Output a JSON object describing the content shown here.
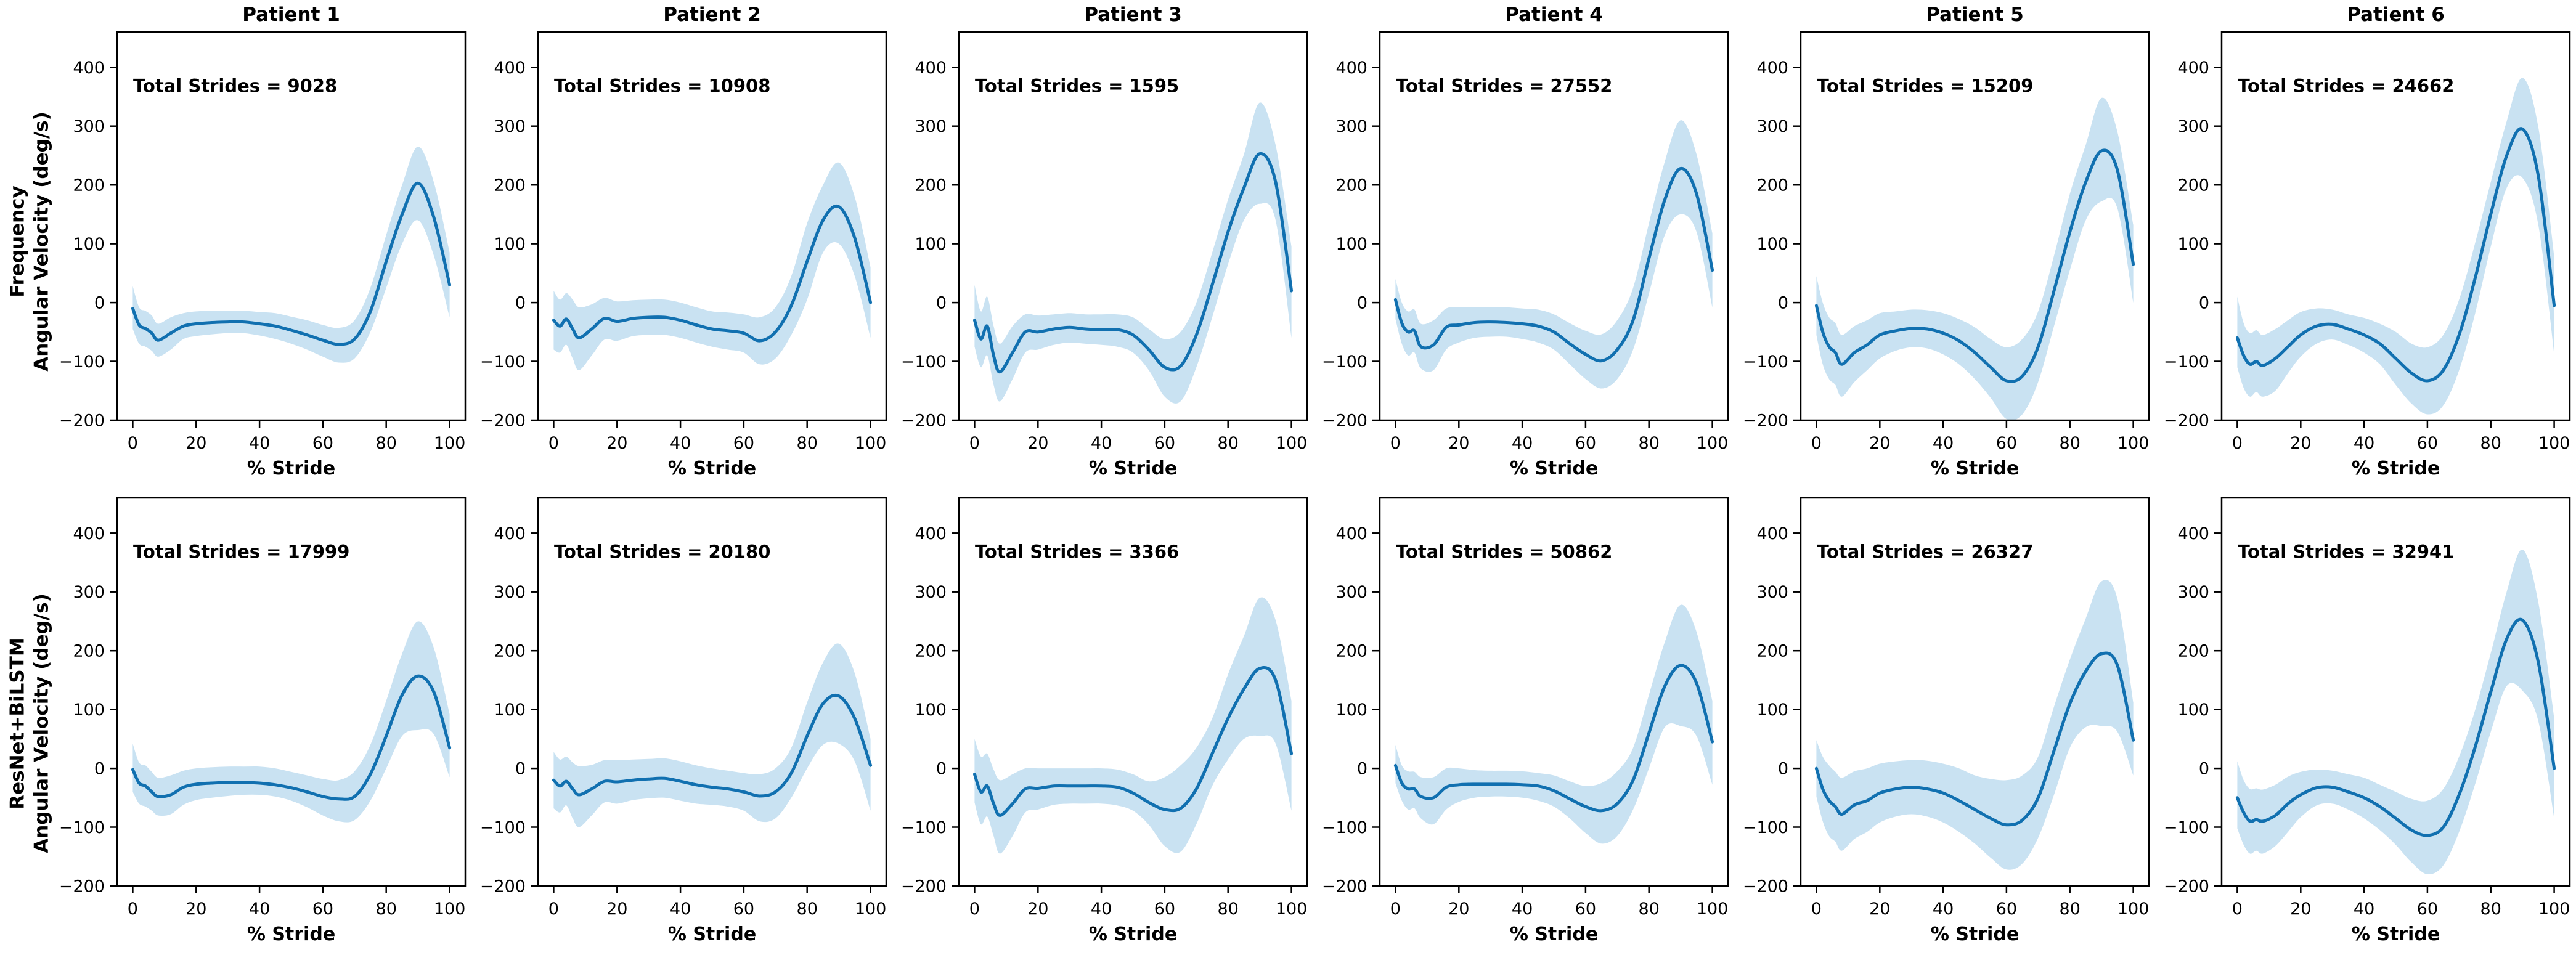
{
  "figure": {
    "xlabel": "% Stride",
    "x_ticks": [
      0,
      20,
      40,
      60,
      80,
      100
    ],
    "y_ticks": [
      400,
      300,
      200,
      100,
      0,
      -100,
      -200
    ],
    "xlim": [
      0,
      100
    ],
    "ylim": [
      -200,
      460
    ],
    "annotation_prefix": "Total Strides = ",
    "row_labels": [
      {
        "line1": "Frequency",
        "line2": "Angular Velocity (deg/s)"
      },
      {
        "line1": "ResNet+BiLSTM",
        "line2": "Angular Velocity (deg/s)"
      }
    ],
    "colors": {
      "line": "#1170b0",
      "band": "#c9e2f2",
      "text": "#000000",
      "spine": "#000000",
      "background": "#ffffff"
    }
  },
  "chart_data": [
    {
      "type": "line",
      "row": "Frequency",
      "col": 1,
      "title": "Patient 1",
      "annotation": "Total Strides = 9028",
      "total_strides": 9028,
      "x": [
        0,
        2,
        4,
        6,
        8,
        12,
        16,
        20,
        25,
        30,
        35,
        40,
        45,
        50,
        55,
        60,
        65,
        70,
        75,
        80,
        85,
        90,
        95,
        100
      ],
      "mean": [
        -10,
        -38,
        -44,
        -52,
        -64,
        -52,
        -40,
        -36,
        -34,
        -33,
        -33,
        -36,
        -40,
        -47,
        -55,
        -64,
        -71,
        -62,
        -15,
        70,
        150,
        203,
        145,
        30
      ],
      "lower": [
        -45,
        -70,
        -75,
        -82,
        -92,
        -80,
        -62,
        -57,
        -54,
        -52,
        -52,
        -56,
        -62,
        -70,
        -80,
        -92,
        -102,
        -95,
        -50,
        25,
        100,
        140,
        80,
        -25
      ],
      "upper": [
        28,
        -8,
        -14,
        -22,
        -36,
        -25,
        -18,
        -15,
        -14,
        -14,
        -14,
        -16,
        -18,
        -24,
        -30,
        -38,
        -43,
        -30,
        25,
        115,
        200,
        265,
        205,
        85
      ]
    },
    {
      "type": "line",
      "row": "Frequency",
      "col": 2,
      "title": "Patient 2",
      "annotation": "Total Strides = 10908",
      "total_strides": 10908,
      "x": [
        0,
        2,
        4,
        6,
        8,
        12,
        16,
        20,
        25,
        30,
        35,
        40,
        45,
        50,
        55,
        60,
        65,
        70,
        75,
        80,
        85,
        90,
        95,
        100
      ],
      "mean": [
        -30,
        -40,
        -28,
        -45,
        -60,
        -45,
        -27,
        -32,
        -27,
        -25,
        -25,
        -30,
        -38,
        -45,
        -48,
        -52,
        -65,
        -50,
        -5,
        70,
        140,
        163,
        110,
        0
      ],
      "lower": [
        -80,
        -85,
        -72,
        -95,
        -115,
        -90,
        -63,
        -65,
        -57,
        -55,
        -55,
        -60,
        -68,
        -75,
        -80,
        -85,
        -105,
        -95,
        -55,
        5,
        85,
        100,
        45,
        -60
      ],
      "upper": [
        20,
        5,
        16,
        5,
        -8,
        -3,
        8,
        2,
        4,
        5,
        5,
        0,
        -8,
        -15,
        -17,
        -20,
        -25,
        -8,
        45,
        135,
        200,
        238,
        180,
        60
      ]
    },
    {
      "type": "line",
      "row": "Frequency",
      "col": 3,
      "title": "Patient 3",
      "annotation": "Total Strides = 1595",
      "total_strides": 1595,
      "x": [
        0,
        2,
        4,
        6,
        8,
        12,
        16,
        20,
        25,
        30,
        35,
        40,
        45,
        50,
        55,
        60,
        65,
        70,
        75,
        80,
        85,
        90,
        95,
        100
      ],
      "mean": [
        -30,
        -62,
        -40,
        -90,
        -118,
        -85,
        -50,
        -50,
        -45,
        -42,
        -45,
        -46,
        -46,
        -55,
        -80,
        -110,
        -108,
        -55,
        30,
        120,
        195,
        253,
        205,
        20
      ],
      "lower": [
        -75,
        -110,
        -90,
        -140,
        -168,
        -130,
        -85,
        -80,
        -72,
        -68,
        -70,
        -72,
        -75,
        -85,
        -115,
        -160,
        -168,
        -110,
        -25,
        65,
        140,
        168,
        140,
        -60
      ],
      "upper": [
        30,
        -15,
        10,
        -40,
        -70,
        -40,
        -20,
        -22,
        -20,
        -18,
        -20,
        -20,
        -20,
        -25,
        -45,
        -62,
        -50,
        0,
        85,
        175,
        252,
        340,
        268,
        95
      ]
    },
    {
      "type": "line",
      "row": "Frequency",
      "col": 4,
      "title": "Patient 4",
      "annotation": "Total Strides = 27552",
      "total_strides": 27552,
      "x": [
        0,
        2,
        4,
        6,
        8,
        12,
        16,
        20,
        25,
        30,
        35,
        40,
        45,
        50,
        55,
        60,
        65,
        70,
        75,
        80,
        85,
        90,
        95,
        100
      ],
      "mean": [
        5,
        -35,
        -50,
        -48,
        -75,
        -72,
        -42,
        -38,
        -34,
        -33,
        -34,
        -36,
        -40,
        -50,
        -70,
        -88,
        -99,
        -80,
        -30,
        75,
        175,
        228,
        185,
        55
      ],
      "lower": [
        -28,
        -70,
        -90,
        -85,
        -112,
        -115,
        -80,
        -68,
        -60,
        -58,
        -58,
        -62,
        -68,
        -80,
        -105,
        -130,
        -146,
        -130,
        -80,
        15,
        115,
        150,
        120,
        -8
      ],
      "upper": [
        40,
        0,
        -15,
        -12,
        -36,
        -30,
        -10,
        -8,
        -8,
        -8,
        -8,
        -10,
        -12,
        -20,
        -35,
        -48,
        -54,
        -30,
        25,
        135,
        240,
        310,
        252,
        118
      ]
    },
    {
      "type": "line",
      "row": "Frequency",
      "col": 5,
      "title": "Patient 5",
      "annotation": "Total Strides = 15209",
      "total_strides": 15209,
      "x": [
        0,
        2,
        4,
        6,
        8,
        12,
        16,
        20,
        25,
        30,
        35,
        40,
        45,
        50,
        55,
        60,
        65,
        70,
        75,
        80,
        85,
        90,
        95,
        100
      ],
      "mean": [
        -5,
        -50,
        -75,
        -85,
        -105,
        -85,
        -72,
        -55,
        -48,
        -44,
        -45,
        -52,
        -65,
        -85,
        -110,
        -133,
        -125,
        -75,
        20,
        120,
        205,
        258,
        225,
        65
      ],
      "lower": [
        -55,
        -105,
        -130,
        -140,
        -160,
        -135,
        -115,
        -95,
        -82,
        -76,
        -78,
        -88,
        -105,
        -130,
        -162,
        -198,
        -190,
        -135,
        -40,
        55,
        140,
        172,
        160,
        0
      ],
      "upper": [
        45,
        0,
        -25,
        -35,
        -55,
        -40,
        -30,
        -18,
        -15,
        -12,
        -13,
        -18,
        -28,
        -42,
        -62,
        -76,
        -62,
        -15,
        80,
        185,
        268,
        348,
        290,
        132
      ]
    },
    {
      "type": "line",
      "row": "Frequency",
      "col": 6,
      "title": "Patient 6",
      "annotation": "Total Strides = 24662",
      "total_strides": 24662,
      "x": [
        0,
        2,
        4,
        6,
        8,
        12,
        16,
        20,
        25,
        30,
        35,
        40,
        45,
        50,
        55,
        60,
        65,
        70,
        75,
        80,
        85,
        90,
        95,
        100
      ],
      "mean": [
        -60,
        -90,
        -105,
        -100,
        -107,
        -95,
        -75,
        -55,
        -40,
        -37,
        -45,
        -55,
        -70,
        -95,
        -120,
        -133,
        -115,
        -55,
        40,
        150,
        250,
        295,
        215,
        -5
      ],
      "lower": [
        -110,
        -145,
        -160,
        -152,
        -160,
        -150,
        -120,
        -92,
        -70,
        -63,
        -72,
        -85,
        -105,
        -140,
        -172,
        -190,
        -175,
        -115,
        -20,
        95,
        195,
        212,
        132,
        -88
      ],
      "upper": [
        10,
        -35,
        -52,
        -47,
        -55,
        -45,
        -30,
        -16,
        -10,
        -12,
        -20,
        -26,
        -36,
        -50,
        -70,
        -76,
        -55,
        5,
        100,
        205,
        308,
        382,
        298,
        78
      ]
    },
    {
      "type": "line",
      "row": "ResNet+BiLSTM",
      "col": 1,
      "title": "Patient 1",
      "annotation": "Total Strides = 17999",
      "total_strides": 17999,
      "x": [
        0,
        2,
        4,
        6,
        8,
        12,
        16,
        20,
        25,
        30,
        35,
        40,
        45,
        50,
        55,
        60,
        65,
        70,
        75,
        80,
        85,
        90,
        95,
        100
      ],
      "mean": [
        -2,
        -25,
        -30,
        -40,
        -48,
        -45,
        -32,
        -27,
        -25,
        -24,
        -24,
        -25,
        -28,
        -33,
        -40,
        -48,
        -52,
        -48,
        -10,
        55,
        125,
        157,
        130,
        35
      ],
      "lower": [
        -40,
        -60,
        -65,
        -72,
        -80,
        -78,
        -62,
        -54,
        -50,
        -47,
        -45,
        -45,
        -48,
        -55,
        -66,
        -80,
        -90,
        -88,
        -55,
        0,
        55,
        65,
        58,
        -15
      ],
      "upper": [
        42,
        10,
        5,
        -6,
        -16,
        -12,
        -4,
        0,
        2,
        3,
        3,
        3,
        0,
        -6,
        -12,
        -18,
        -20,
        -5,
        40,
        115,
        195,
        250,
        205,
        92
      ]
    },
    {
      "type": "line",
      "row": "ResNet+BiLSTM",
      "col": 2,
      "title": "Patient 2",
      "annotation": "Total Strides = 20180",
      "total_strides": 20180,
      "x": [
        0,
        2,
        4,
        6,
        8,
        12,
        16,
        20,
        25,
        30,
        35,
        40,
        45,
        50,
        55,
        60,
        65,
        70,
        75,
        80,
        85,
        90,
        95,
        100
      ],
      "mean": [
        -20,
        -30,
        -22,
        -35,
        -45,
        -35,
        -22,
        -23,
        -20,
        -18,
        -17,
        -22,
        -28,
        -32,
        -35,
        -40,
        -47,
        -40,
        -8,
        55,
        110,
        123,
        85,
        5
      ],
      "lower": [
        -68,
        -75,
        -63,
        -85,
        -100,
        -80,
        -58,
        -60,
        -54,
        -51,
        -50,
        -55,
        -60,
        -62,
        -65,
        -72,
        -90,
        -85,
        -50,
        0,
        40,
        42,
        12,
        -72
      ],
      "upper": [
        28,
        15,
        20,
        10,
        4,
        6,
        14,
        14,
        15,
        16,
        17,
        12,
        5,
        0,
        -4,
        -8,
        -10,
        0,
        35,
        112,
        180,
        212,
        162,
        50
      ]
    },
    {
      "type": "line",
      "row": "ResNet+BiLSTM",
      "col": 3,
      "title": "Patient 3",
      "annotation": "Total Strides = 3366",
      "total_strides": 3366,
      "x": [
        0,
        2,
        4,
        6,
        8,
        12,
        16,
        20,
        25,
        30,
        35,
        40,
        45,
        50,
        55,
        60,
        65,
        70,
        75,
        80,
        85,
        90,
        95,
        100
      ],
      "mean": [
        -10,
        -40,
        -30,
        -60,
        -80,
        -60,
        -35,
        -34,
        -30,
        -30,
        -30,
        -30,
        -32,
        -42,
        -58,
        -70,
        -68,
        -35,
        25,
        85,
        135,
        170,
        150,
        25
      ],
      "lower": [
        -58,
        -95,
        -82,
        -115,
        -145,
        -115,
        -75,
        -70,
        -62,
        -60,
        -60,
        -60,
        -63,
        -72,
        -96,
        -132,
        -142,
        -95,
        -30,
        15,
        50,
        55,
        42,
        -72
      ],
      "upper": [
        50,
        20,
        25,
        -2,
        -20,
        -10,
        0,
        0,
        0,
        0,
        0,
        0,
        -2,
        -10,
        -22,
        -15,
        5,
        35,
        85,
        160,
        225,
        290,
        252,
        115
      ]
    },
    {
      "type": "line",
      "row": "ResNet+BiLSTM",
      "col": 4,
      "title": "Patient 4",
      "annotation": "Total Strides = 50862",
      "total_strides": 50862,
      "x": [
        0,
        2,
        4,
        6,
        8,
        12,
        16,
        20,
        25,
        30,
        35,
        40,
        45,
        50,
        55,
        60,
        65,
        70,
        75,
        80,
        85,
        90,
        95,
        100
      ],
      "mean": [
        5,
        -25,
        -35,
        -35,
        -48,
        -50,
        -32,
        -28,
        -27,
        -27,
        -27,
        -28,
        -30,
        -38,
        -52,
        -65,
        -72,
        -60,
        -20,
        60,
        140,
        175,
        145,
        45
      ],
      "lower": [
        -25,
        -55,
        -70,
        -68,
        -85,
        -95,
        -70,
        -57,
        -50,
        -48,
        -48,
        -50,
        -55,
        -65,
        -85,
        -110,
        -128,
        -115,
        -70,
        0,
        70,
        72,
        55,
        -28
      ],
      "upper": [
        40,
        5,
        -5,
        -6,
        -15,
        -15,
        0,
        0,
        -3,
        -4,
        -4,
        -5,
        -8,
        -12,
        -22,
        -30,
        -25,
        -5,
        35,
        125,
        215,
        278,
        232,
        115
      ]
    },
    {
      "type": "line",
      "row": "ResNet+BiLSTM",
      "col": 5,
      "title": "Patient 5",
      "annotation": "Total Strides = 26327",
      "total_strides": 26327,
      "x": [
        0,
        2,
        4,
        6,
        8,
        12,
        16,
        20,
        25,
        30,
        35,
        40,
        45,
        50,
        55,
        60,
        65,
        70,
        75,
        80,
        85,
        90,
        95,
        100
      ],
      "mean": [
        0,
        -35,
        -55,
        -65,
        -78,
        -62,
        -55,
        -42,
        -35,
        -32,
        -35,
        -42,
        -55,
        -70,
        -85,
        -96,
        -88,
        -50,
        30,
        110,
        165,
        195,
        175,
        48
      ],
      "lower": [
        -48,
        -90,
        -115,
        -125,
        -140,
        -120,
        -108,
        -92,
        -82,
        -78,
        -82,
        -92,
        -108,
        -128,
        -152,
        -172,
        -162,
        -118,
        -45,
        35,
        70,
        72,
        62,
        -12
      ],
      "upper": [
        48,
        20,
        5,
        -6,
        -16,
        -5,
        0,
        8,
        12,
        14,
        13,
        8,
        0,
        -12,
        -18,
        -20,
        -12,
        20,
        105,
        185,
        255,
        318,
        288,
        112
      ]
    },
    {
      "type": "line",
      "row": "ResNet+BiLSTM",
      "col": 6,
      "title": "Patient 6",
      "annotation": "Total Strides = 32941",
      "total_strides": 32941,
      "x": [
        0,
        2,
        4,
        6,
        8,
        12,
        16,
        20,
        25,
        30,
        35,
        40,
        45,
        50,
        55,
        60,
        65,
        70,
        75,
        80,
        85,
        90,
        95,
        100
      ],
      "mean": [
        -50,
        -75,
        -90,
        -87,
        -90,
        -80,
        -60,
        -45,
        -33,
        -32,
        -40,
        -50,
        -65,
        -85,
        -105,
        -114,
        -100,
        -45,
        35,
        130,
        220,
        252,
        180,
        0
      ],
      "lower": [
        -102,
        -130,
        -145,
        -140,
        -145,
        -132,
        -108,
        -83,
        -63,
        -60,
        -70,
        -85,
        -105,
        -130,
        -160,
        -180,
        -165,
        -108,
        -28,
        62,
        140,
        132,
        80,
        -85
      ],
      "upper": [
        12,
        -20,
        -35,
        -34,
        -36,
        -28,
        -14,
        -6,
        -2,
        -4,
        -10,
        -16,
        -28,
        -40,
        -52,
        -55,
        -35,
        20,
        98,
        196,
        300,
        372,
        282,
        85
      ]
    }
  ]
}
